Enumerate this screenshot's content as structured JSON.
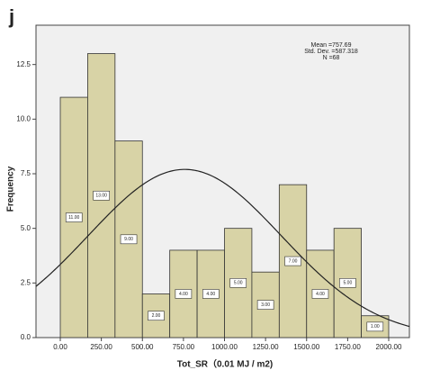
{
  "chart_data": {
    "type": "histogram",
    "panel_label": "j",
    "x_label": "Tot_SR（0.01 MJ / m2)",
    "y_label": "Frequency",
    "stats": [
      {
        "value": 757.69,
        "label": "Mean =757.69"
      },
      {
        "value": 587.318,
        "label": "Std. Dev. =587.318"
      },
      {
        "value": 68,
        "label": "N =68"
      }
    ],
    "bins": [
      0,
      166.667,
      333.333,
      500,
      666.667,
      833.333,
      1000,
      1166.667,
      1333.333,
      1500,
      1666.667,
      1833.333,
      2000
    ],
    "values": [
      11,
      13,
      9,
      2,
      4,
      4,
      5,
      3,
      7,
      4,
      5,
      1
    ],
    "value_labels": [
      "11.00",
      "13.00",
      "9.00",
      "2.00",
      "4.00",
      "4.00",
      "5.00",
      "3.00",
      "7.00",
      "4.00",
      "5.00",
      "1.00"
    ],
    "color": "#d8d3a6",
    "xlim": [
      -148,
      2126
    ],
    "ylim": [
      0,
      14.3
    ],
    "xticks": [
      {
        "value": 0,
        "label": "0.00"
      },
      {
        "value": 250,
        "label": "250.00"
      },
      {
        "value": 500,
        "label": "500.00"
      },
      {
        "value": 750,
        "label": "750.00"
      },
      {
        "value": 1000,
        "label": "1000.00"
      },
      {
        "value": 1250,
        "label": "1250.00"
      },
      {
        "value": 1500,
        "label": "1500.00"
      },
      {
        "value": 1750,
        "label": "1750.00"
      },
      {
        "value": 2000,
        "label": "2000.00"
      }
    ],
    "yticks": [
      {
        "value": 0,
        "label": "0.0"
      },
      2.5,
      {
        "value": 5,
        "label": "5.0"
      },
      7.5,
      {
        "value": 10,
        "label": "10.0"
      },
      12.5
    ]
  }
}
